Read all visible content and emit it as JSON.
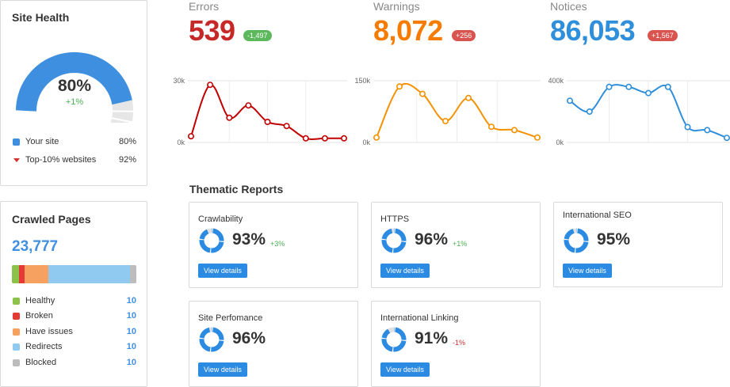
{
  "site_health": {
    "title": "Site Health",
    "percent_text": "80%",
    "percent_value": 80,
    "top10_value": 92,
    "delta": "+1%",
    "legend": [
      {
        "label": "Your site",
        "value": "80%",
        "color": "#3f8fe0"
      },
      {
        "label": "Top-10% websites",
        "value": "92%",
        "color": "#d32f2f"
      }
    ]
  },
  "crawled": {
    "title": "Crawled Pages",
    "count": "23,777",
    "segments": [
      {
        "label": "Healthy",
        "value": "10",
        "color": "#8bc34a",
        "share": 0.055
      },
      {
        "label": "Broken",
        "value": "10",
        "color": "#e53935",
        "share": 0.05
      },
      {
        "label": "Have issues",
        "value": "10",
        "color": "#f6a160",
        "share": 0.19
      },
      {
        "label": "Redirects",
        "value": "10",
        "color": "#90caf0",
        "share": 0.655
      },
      {
        "label": "Blocked",
        "value": "10",
        "color": "#bdbdbd",
        "share": 0.05
      }
    ]
  },
  "metrics": [
    {
      "label": "Errors",
      "value": "539",
      "delta": "-1,497",
      "value_color": "#c62828",
      "badge_color": "#5cb85c",
      "line_color": "#c00000"
    },
    {
      "label": "Warnings",
      "value": "8,072",
      "delta": "+256",
      "value_color": "#f57c00",
      "badge_color": "#d9534f",
      "line_color": "#f39200"
    },
    {
      "label": "Notices",
      "value": "86,053",
      "delta": "+1,567",
      "value_color": "#2f8fdb",
      "badge_color": "#d9534f",
      "line_color": "#2f8fdb"
    }
  ],
  "chart_data": [
    {
      "type": "line",
      "series": [
        {
          "values": [
            3,
            28,
            12,
            18,
            10,
            8,
            2,
            2,
            2
          ]
        }
      ],
      "y_ticks": [
        "30k",
        "0k"
      ],
      "ylim": [
        0,
        30000
      ]
    },
    {
      "type": "line",
      "series": [
        {
          "values": [
            12,
            136,
            118,
            52,
            108,
            38,
            30,
            12
          ]
        }
      ],
      "y_ticks": [
        "150k",
        "0k"
      ],
      "ylim": [
        0,
        150000
      ]
    },
    {
      "type": "line",
      "series": [
        {
          "values": [
            270,
            200,
            360,
            360,
            320,
            360,
            100,
            80,
            30
          ]
        }
      ],
      "y_ticks": [
        "400k",
        "0k"
      ],
      "ylim": [
        0,
        400000
      ]
    }
  ],
  "thematic": {
    "title": "Thematic Reports",
    "button_label": "View details",
    "reports": [
      {
        "name": "Crawlability",
        "percent": "93%",
        "value": 93,
        "delta": "+3%",
        "delta_color": "#4caf50"
      },
      {
        "name": "HTTPS",
        "percent": "96%",
        "value": 96,
        "delta": "+1%",
        "delta_color": "#4caf50"
      },
      {
        "name": "International SEO",
        "percent": "95%",
        "value": 95,
        "delta": "",
        "delta_color": "#4caf50"
      },
      {
        "name": "Site Perfomance",
        "percent": "96%",
        "value": 96,
        "delta": "",
        "delta_color": "#4caf50"
      },
      {
        "name": "International Linking",
        "percent": "91%",
        "value": 91,
        "delta": "-1%",
        "delta_color": "#d32f2f"
      }
    ]
  }
}
